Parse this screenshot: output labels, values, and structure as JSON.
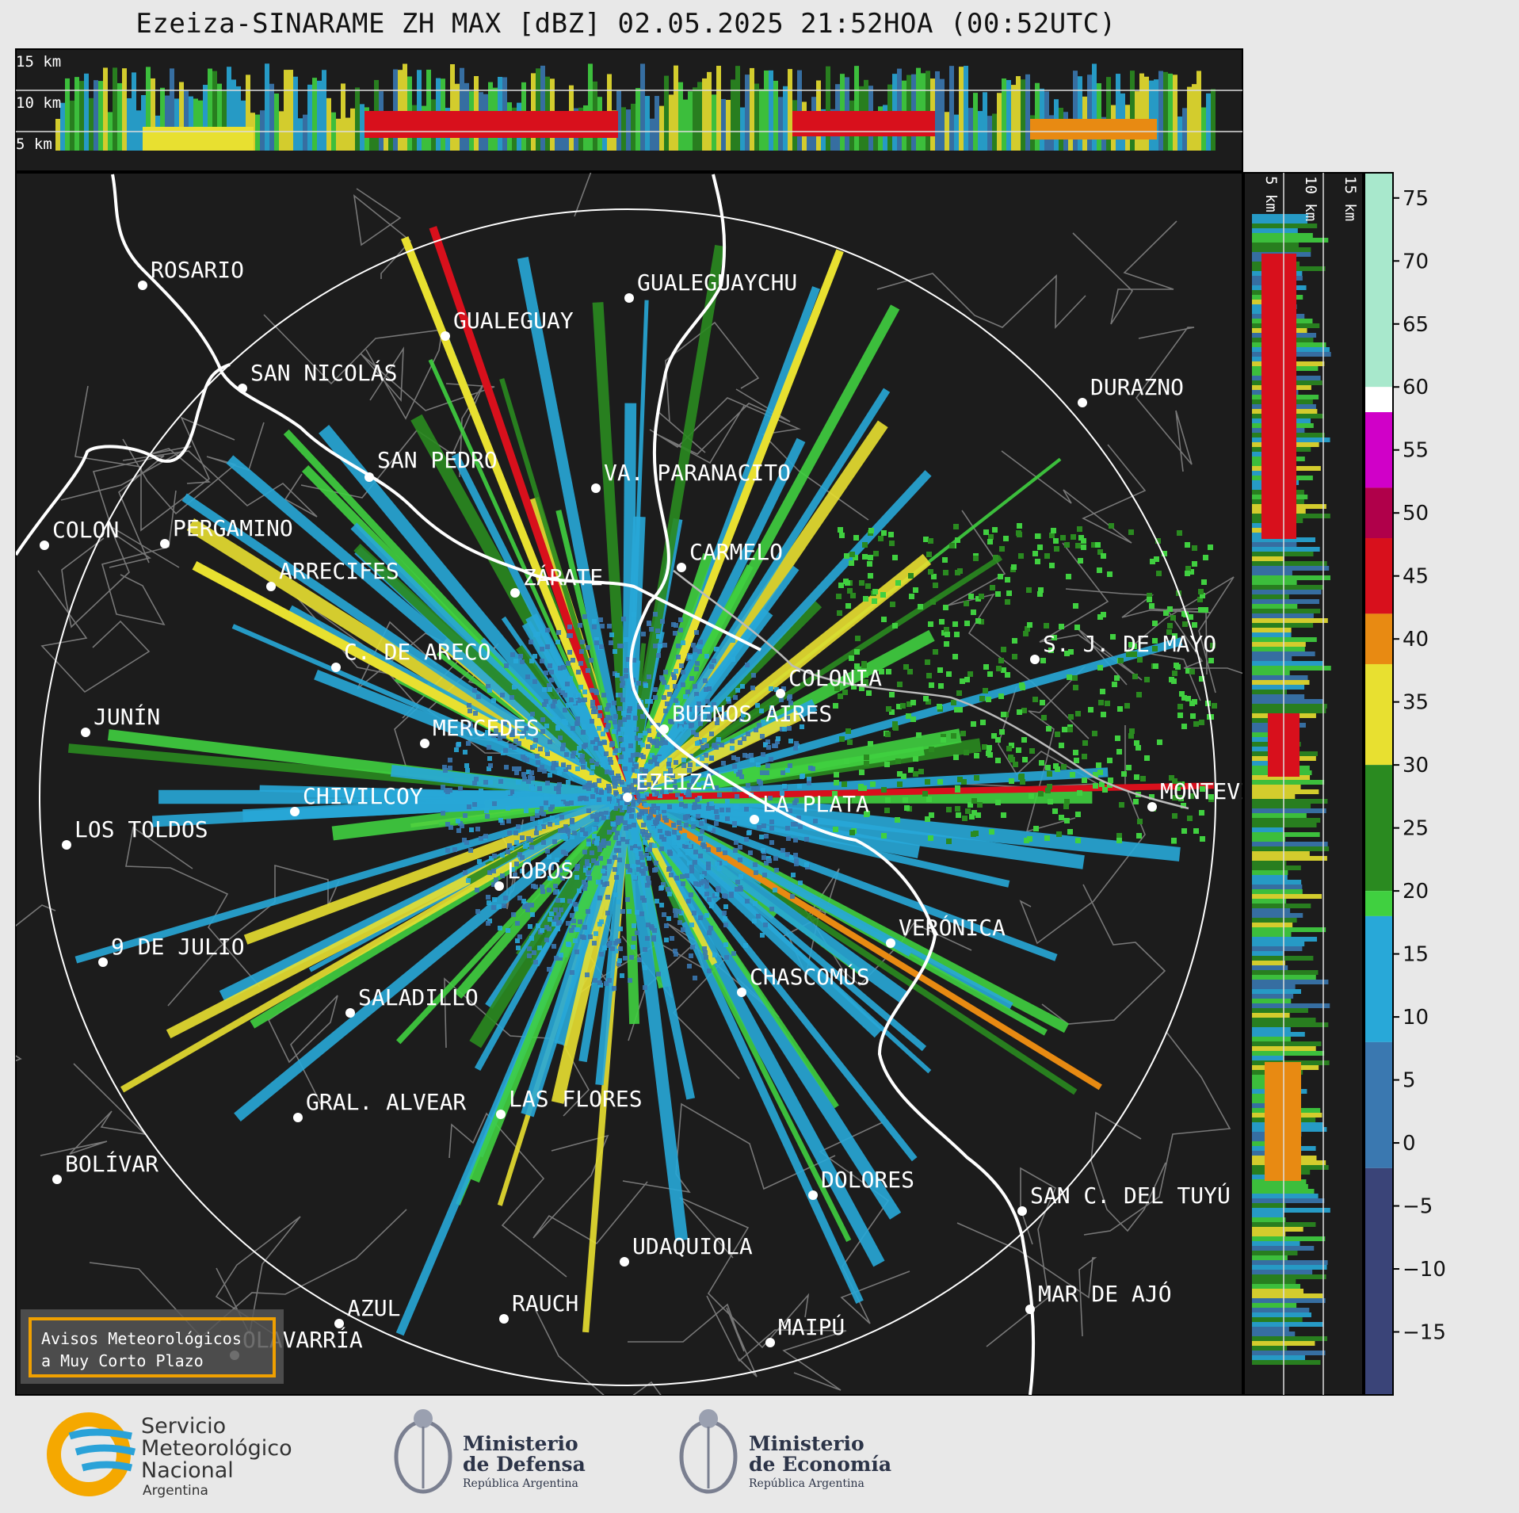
{
  "title": "Ezeiza-SINARAME ZH MAX [dBZ] 02.05.2025 21:52HOA (00:52UTC)",
  "top_section": {
    "height_labels": [
      "15 km",
      "10 km",
      "5 km"
    ]
  },
  "side_section": {
    "height_labels": [
      "5 km",
      "10 km",
      "15 km"
    ]
  },
  "colorbar": {
    "ticks": [
      "75",
      "70",
      "65",
      "60",
      "55",
      "50",
      "45",
      "40",
      "35",
      "30",
      "25",
      "20",
      "15",
      "10",
      "5",
      "0",
      "−5",
      "−10",
      "−15"
    ],
    "scale": [
      {
        "from": 60,
        "to": 77,
        "color": "#a8e8cc"
      },
      {
        "from": 58,
        "to": 60,
        "color": "#ffffff"
      },
      {
        "from": 52,
        "to": 58,
        "color": "#d000c8"
      },
      {
        "from": 48,
        "to": 52,
        "color": "#b0004a"
      },
      {
        "from": 42,
        "to": 48,
        "color": "#d8101c"
      },
      {
        "from": 38,
        "to": 42,
        "color": "#e88a12"
      },
      {
        "from": 30,
        "to": 38,
        "color": "#e8e030"
      },
      {
        "from": 20,
        "to": 30,
        "color": "#2a8a20"
      },
      {
        "from": 18,
        "to": 20,
        "color": "#40d040"
      },
      {
        "from": 8,
        "to": 18,
        "color": "#28a8d8"
      },
      {
        "from": -2,
        "to": 8,
        "color": "#3a78b0"
      },
      {
        "from": -20,
        "to": -2,
        "color": "#3a4478"
      }
    ]
  },
  "cities": [
    {
      "name": "ROSARIO"
    },
    {
      "name": "GUALEGUAYCHU"
    },
    {
      "name": "GUALEGUAY"
    },
    {
      "name": "SAN NICOLÁS"
    },
    {
      "name": "DURAZNO"
    },
    {
      "name": "SAN PEDRO"
    },
    {
      "name": "VA. PARANACITO"
    },
    {
      "name": "COLON"
    },
    {
      "name": "PERGAMINO"
    },
    {
      "name": "CARMELO"
    },
    {
      "name": "ARRECIFES"
    },
    {
      "name": "ZÁRATE"
    },
    {
      "name": "C. DE ARECO"
    },
    {
      "name": "S. J. DE MAYO"
    },
    {
      "name": "COLONIA"
    },
    {
      "name": "JUNÍN"
    },
    {
      "name": "BUENOS AIRES"
    },
    {
      "name": "MERCEDES"
    },
    {
      "name": "EZEIZA"
    },
    {
      "name": "MONTEVIDEO"
    },
    {
      "name": "CHIVILCOY"
    },
    {
      "name": "LA PLATA"
    },
    {
      "name": "LOS TOLDOS"
    },
    {
      "name": "LOBOS"
    },
    {
      "name": "VERÓNICA"
    },
    {
      "name": "9 DE JULIO"
    },
    {
      "name": "CHASCOMÚS"
    },
    {
      "name": "SALADILLO"
    },
    {
      "name": "GRAL. ALVEAR"
    },
    {
      "name": "LAS FLORES"
    },
    {
      "name": "BOLÍVAR"
    },
    {
      "name": "DOLORES"
    },
    {
      "name": "SAN C. DEL TUYÚ"
    },
    {
      "name": "UDAQUIOLA"
    },
    {
      "name": "MAR DE AJÓ"
    },
    {
      "name": "AZUL"
    },
    {
      "name": "RAUCH"
    },
    {
      "name": "OLAVARRÍA"
    },
    {
      "name": "MAIPÚ"
    }
  ],
  "badge": {
    "line1": "Avisos Meteorológicos",
    "line2": "a Muy Corto Plazo",
    "border_color": "#f0a000"
  },
  "logos": {
    "smn": {
      "line1": "Servicio",
      "line2": "Meteorológico",
      "line3": "Nacional",
      "line4": "Argentina"
    },
    "defensa": {
      "line1": "Ministerio",
      "line2": "de Defensa",
      "line3": "República Argentina"
    },
    "economia": {
      "line1": "Ministerio",
      "line2": "de Economía",
      "line3": "República Argentina"
    }
  }
}
